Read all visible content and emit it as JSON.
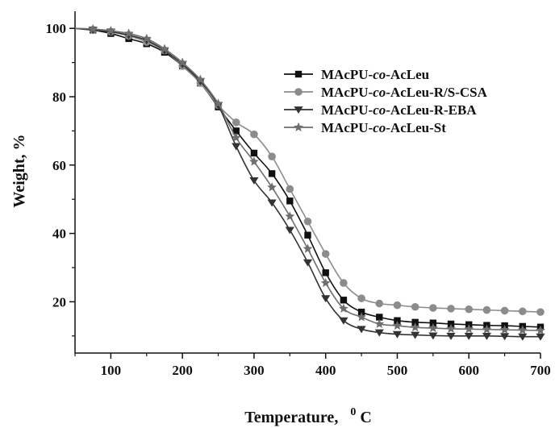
{
  "chart_data": {
    "type": "line",
    "xlabel": "Temperature,",
    "xlabel_unit_sup": "0",
    "xlabel_unit": "C",
    "ylabel": "Weight, %",
    "xlim": [
      50,
      700
    ],
    "ylim": [
      5,
      105
    ],
    "xticks": [
      100,
      200,
      300,
      400,
      500,
      600,
      700
    ],
    "yticks": [
      20,
      40,
      60,
      80,
      100
    ],
    "grid": false,
    "legend_position": "top-right",
    "series": [
      {
        "name": "MAcPU-co-AcLeu",
        "name_parts": [
          "MAcPU-",
          "co",
          "-AcLeu"
        ],
        "color": "#111111",
        "marker": "square",
        "x": [
          50,
          75,
          100,
          125,
          150,
          175,
          200,
          225,
          250,
          275,
          300,
          325,
          350,
          375,
          400,
          425,
          450,
          475,
          500,
          525,
          550,
          575,
          600,
          625,
          650,
          675,
          700
        ],
        "y": [
          100,
          99.5,
          98.5,
          97,
          95.5,
          93,
          89,
          84,
          77,
          70,
          63.5,
          57.5,
          49.5,
          39.5,
          28.5,
          20.5,
          17,
          15.5,
          14.5,
          14,
          13.8,
          13.5,
          13.3,
          13.1,
          13,
          12.8,
          12.6
        ]
      },
      {
        "name": "MAcPU-co-AcLeu-R/S-CSA",
        "name_parts": [
          "MAcPU-",
          "co",
          "-AcLeu-R/S-CSA"
        ],
        "color": "#8c8c8c",
        "marker": "circle",
        "x": [
          50,
          75,
          100,
          125,
          150,
          175,
          200,
          225,
          250,
          275,
          300,
          325,
          350,
          375,
          400,
          425,
          450,
          475,
          500,
          525,
          550,
          575,
          600,
          625,
          650,
          675,
          700
        ],
        "y": [
          100,
          99.6,
          99,
          97.8,
          96,
          93.5,
          89,
          84,
          77.5,
          72.5,
          69,
          62.5,
          53,
          43.5,
          34,
          25.5,
          21,
          19.5,
          19,
          18.5,
          18.2,
          18,
          17.8,
          17.6,
          17.4,
          17.2,
          17
        ]
      },
      {
        "name": "MAcPU-co-AcLeu-R-EBA",
        "name_parts": [
          "MAcPU-",
          "co",
          "-AcLeu-R-EBA"
        ],
        "color": "#333333",
        "marker": "triangle-down",
        "x": [
          50,
          75,
          100,
          125,
          150,
          175,
          200,
          225,
          250,
          275,
          300,
          325,
          350,
          375,
          400,
          425,
          450,
          475,
          500,
          525,
          550,
          575,
          600,
          625,
          650,
          675,
          700
        ],
        "y": [
          100,
          99.5,
          99,
          98,
          96.5,
          93.5,
          89.5,
          84.5,
          77.5,
          65.5,
          55.5,
          49,
          41,
          31.5,
          21,
          14.5,
          12,
          11,
          10.5,
          10.3,
          10.1,
          10,
          10,
          10,
          9.9,
          9.8,
          9.8
        ]
      },
      {
        "name": "MAcPU-co-AcLeu-St",
        "name_parts": [
          "MAcPU-",
          "co",
          "-AcLeu-St"
        ],
        "color": "#6e6e6e",
        "marker": "star",
        "x": [
          50,
          75,
          100,
          125,
          150,
          175,
          200,
          225,
          250,
          275,
          300,
          325,
          350,
          375,
          400,
          425,
          450,
          475,
          500,
          525,
          550,
          575,
          600,
          625,
          650,
          675,
          700
        ],
        "y": [
          100,
          99.8,
          99.3,
          98.5,
          97,
          94,
          90,
          85,
          78,
          68,
          61,
          53.5,
          45,
          35.5,
          25.5,
          18,
          15.5,
          13.5,
          13,
          12.5,
          12.3,
          12.1,
          12,
          11.9,
          11.8,
          11.7,
          11.6
        ]
      }
    ]
  }
}
